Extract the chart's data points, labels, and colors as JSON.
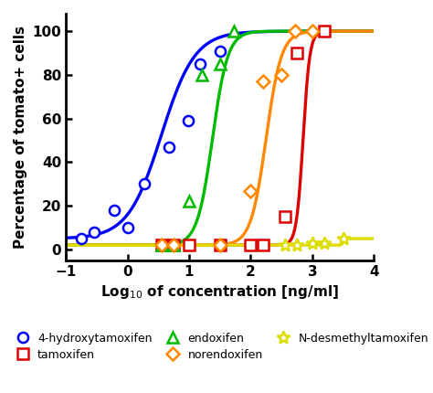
{
  "title": "",
  "xlabel": "Log$_{10}$ of concentration [ng/ml]",
  "ylabel": "Percentage of tomato+ cells",
  "xlim": [
    -1,
    4
  ],
  "ylim": [
    -5,
    108
  ],
  "xticks": [
    -1,
    0,
    1,
    2,
    3,
    4
  ],
  "yticks": [
    0,
    20,
    40,
    60,
    80,
    100
  ],
  "background_color": "#ffffff",
  "series": [
    {
      "name": "4-hydroxytamoxifen",
      "color": "#0000ff",
      "marker": "o",
      "ms": 8,
      "ec50": 0.55,
      "hill": 1.6,
      "ymin": 5,
      "ymax": 100,
      "xd": [
        -0.75,
        -0.55,
        -0.22,
        0.0,
        0.28,
        0.68,
        0.98,
        1.18,
        1.5
      ],
      "yd": [
        5,
        8,
        18,
        10,
        30,
        47,
        59,
        85,
        91
      ],
      "fill": "white"
    },
    {
      "name": "tamoxifen",
      "color": "#dd0000",
      "marker": "s",
      "ms": 8,
      "ec50": 2.85,
      "hill": 8.0,
      "ymin": 2,
      "ymax": 100,
      "xd": [
        0.55,
        0.75,
        1.0,
        1.5,
        2.0,
        2.2,
        2.55,
        2.75,
        3.2
      ],
      "yd": [
        2,
        2,
        2,
        2,
        2,
        2,
        15,
        90,
        100
      ],
      "fill": "white"
    },
    {
      "name": "endoxifen",
      "color": "#00bb00",
      "marker": "^",
      "ms": 8,
      "ec50": 1.38,
      "hill": 3.5,
      "ymin": 2,
      "ymax": 100,
      "xd": [
        0.55,
        0.75,
        1.0,
        1.2,
        1.5,
        1.72
      ],
      "yd": [
        2,
        2,
        22,
        80,
        85,
        100
      ],
      "fill": "white"
    },
    {
      "name": "norendoxifen",
      "color": "#ff8800",
      "marker": "D",
      "ms": 7,
      "ec50": 2.25,
      "hill": 3.5,
      "ymin": 2,
      "ymax": 100,
      "xd": [
        0.55,
        0.75,
        1.5,
        2.0,
        2.2,
        2.5,
        2.72,
        3.0
      ],
      "yd": [
        2,
        2,
        2,
        27,
        77,
        80,
        100,
        100
      ],
      "fill": "white"
    },
    {
      "name": "N-desmethyltamoxifen",
      "color": "#dddd00",
      "marker": "*",
      "ms": 10,
      "ec50": 3.5,
      "hill": 30.0,
      "ymin": 2,
      "ymax": 5,
      "xd": [
        2.55,
        2.75,
        3.0,
        3.2,
        3.5
      ],
      "yd": [
        2,
        2,
        3,
        3,
        5
      ],
      "fill": "white"
    }
  ]
}
